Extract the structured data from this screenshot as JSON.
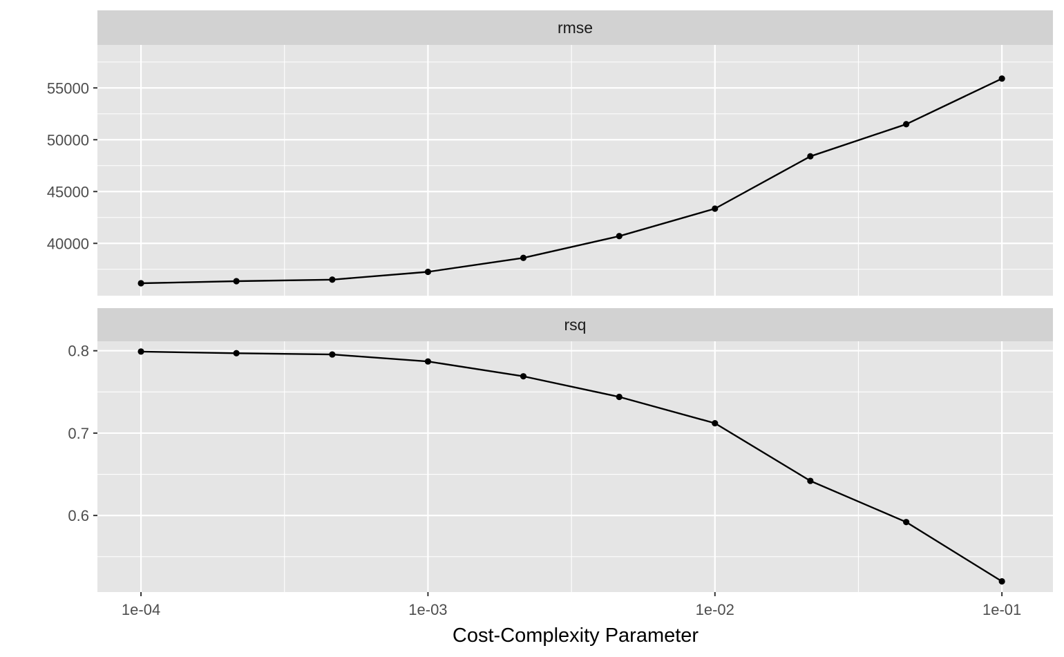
{
  "chart_data": {
    "type": "line",
    "xlabel": "Cost-Complexity Parameter",
    "x_scale": "log10",
    "x_ticks": [
      0.0001,
      0.001,
      0.01,
      0.1
    ],
    "x_tick_labels": [
      "1e-04",
      "1e-03",
      "1e-02",
      "1e-01"
    ],
    "xlim": [
      7.05e-05,
      0.1506
    ],
    "x": [
      0.0001,
      0.000215,
      0.000464,
      0.001,
      0.00215,
      0.00464,
      0.01,
      0.0215,
      0.0464,
      0.1
    ],
    "grid": true,
    "colors": {
      "panel_bg": "#e5e5e5",
      "strip_bg": "#d2d2d2",
      "grid": "#ffffff",
      "line": "#000000"
    },
    "facets": [
      {
        "strip": "rmse",
        "values": [
          36150,
          36350,
          36500,
          37250,
          38600,
          40700,
          43350,
          48400,
          51500,
          55900
        ],
        "ylim": [
          34950,
          59150
        ],
        "y_ticks": [
          40000,
          45000,
          50000,
          55000
        ],
        "y_tick_labels": [
          "40000",
          "45000",
          "50000",
          "55000"
        ]
      },
      {
        "strip": "rsq",
        "values": [
          0.799,
          0.797,
          0.7955,
          0.787,
          0.769,
          0.744,
          0.712,
          0.642,
          0.592,
          0.52
        ],
        "ylim": [
          0.507,
          0.8115
        ],
        "y_ticks": [
          0.6,
          0.7,
          0.8
        ],
        "y_tick_labels": [
          "0.6",
          "0.7",
          "0.8"
        ]
      }
    ]
  }
}
